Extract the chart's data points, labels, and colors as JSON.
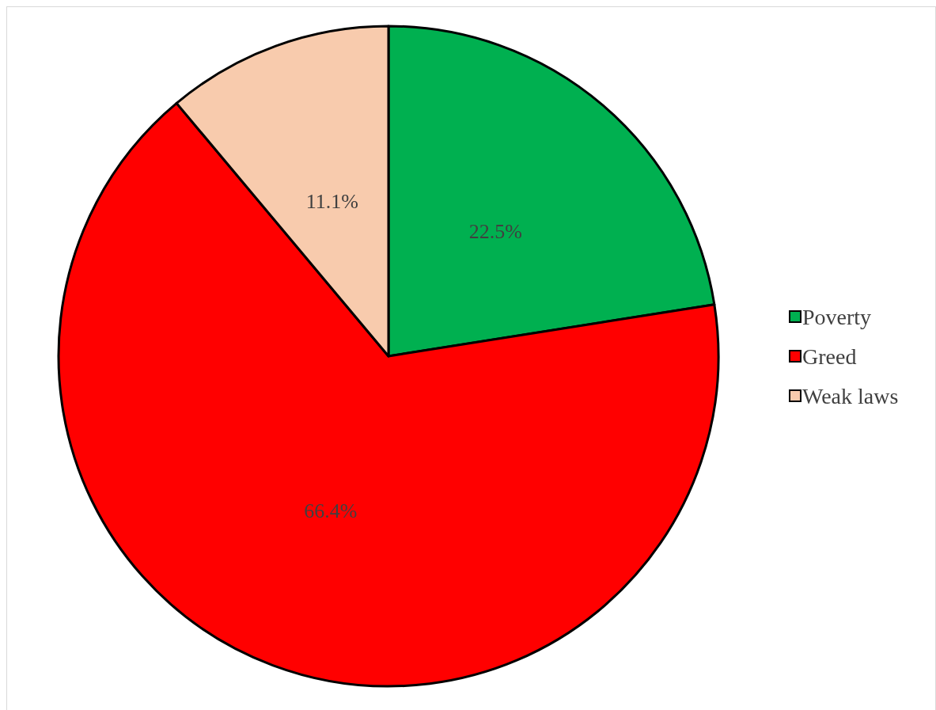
{
  "chart_data": {
    "type": "pie",
    "categories": [
      "Poverty",
      "Greed",
      "Weak laws"
    ],
    "values": [
      22.5,
      66.4,
      11.1
    ],
    "colors": [
      "#00b050",
      "#ff0000",
      "#f8cbad"
    ],
    "value_labels": [
      "22.5%",
      "66.4%",
      "11.1%"
    ],
    "legend": "right"
  }
}
